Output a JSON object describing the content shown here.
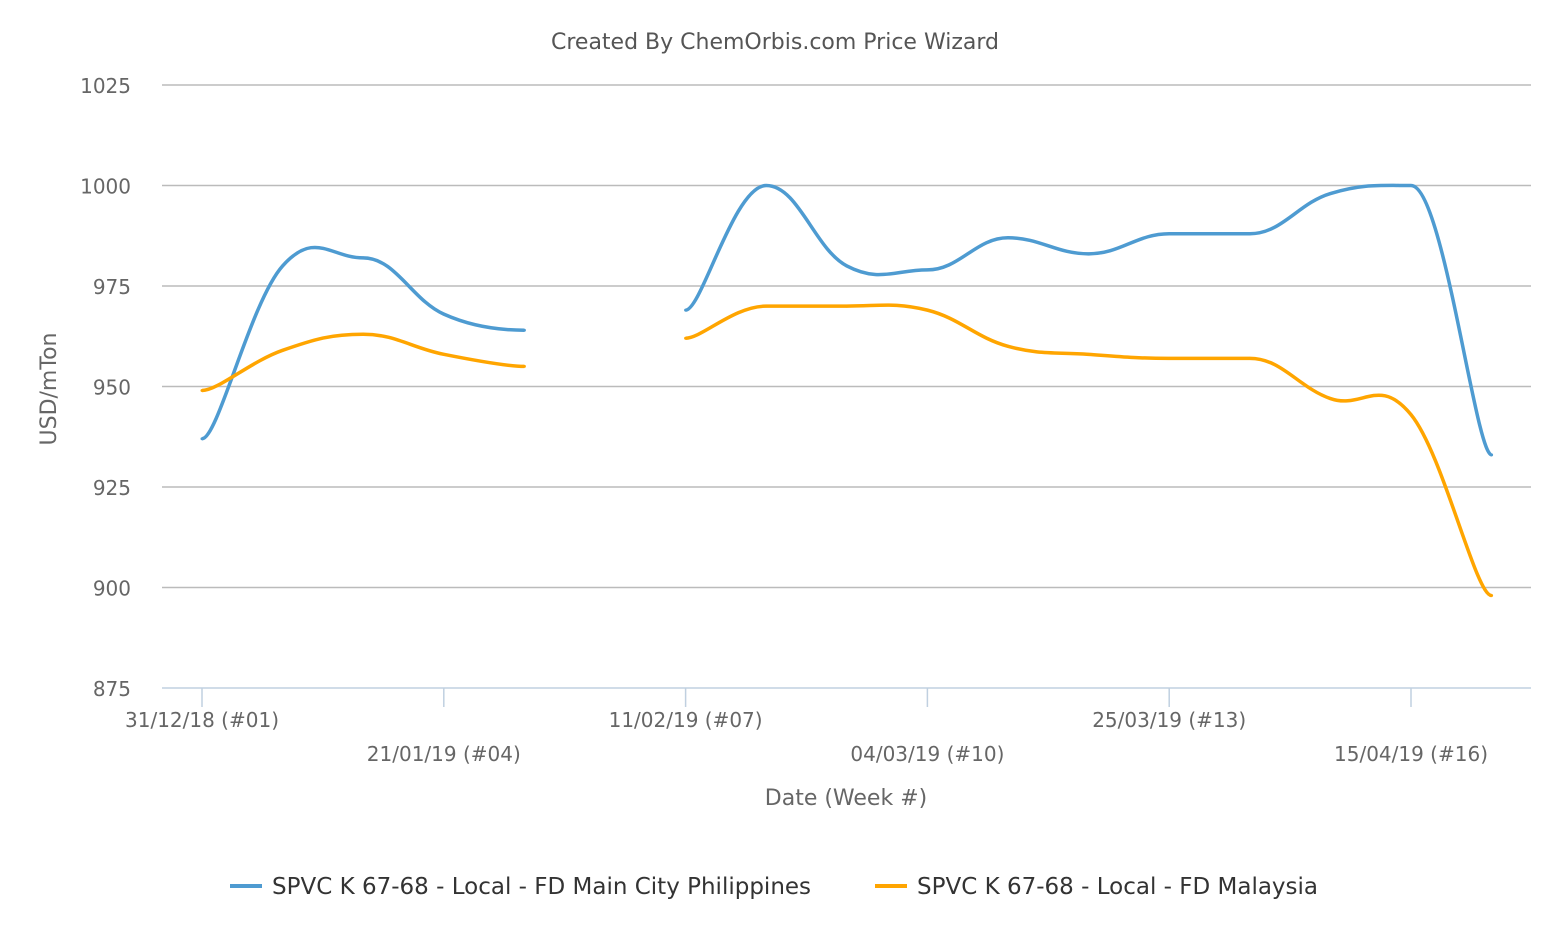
{
  "chart_data": {
    "type": "line",
    "title": "Created By ChemOrbis.com Price Wizard",
    "xlabel": "Date (Week #)",
    "ylabel": "USD/mTon",
    "ylim": [
      875,
      1025
    ],
    "yticks": [
      875,
      900,
      925,
      950,
      975,
      1000,
      1025
    ],
    "grid": true,
    "legend_position": "bottom",
    "x": [
      1,
      2,
      3,
      4,
      5,
      6,
      7,
      8,
      9,
      10,
      11,
      12,
      13,
      14,
      15,
      16,
      17
    ],
    "xticks": [
      {
        "week": 1,
        "label": "31/12/18 (#01)"
      },
      {
        "week": 4,
        "label": "21/01/19 (#04)"
      },
      {
        "week": 7,
        "label": "11/02/19 (#07)"
      },
      {
        "week": 10,
        "label": "04/03/19 (#10)"
      },
      {
        "week": 13,
        "label": "25/03/19 (#13)"
      },
      {
        "week": 16,
        "label": "15/04/19 (#16)"
      }
    ],
    "series": [
      {
        "name": "SPVC K 67-68 - Local - FD Main City Philippines",
        "color": "#4e9bd1",
        "values": [
          937,
          980,
          982,
          968,
          964,
          null,
          969,
          1000,
          980,
          979,
          987,
          983,
          988,
          988,
          998,
          1000,
          933
        ]
      },
      {
        "name": "SPVC K 67-68 - Local - FD Malaysia",
        "color": "#ffa500",
        "values": [
          949,
          959,
          963,
          958,
          955,
          null,
          962,
          970,
          970,
          969,
          960,
          958,
          957,
          957,
          947,
          943,
          898
        ]
      }
    ]
  }
}
